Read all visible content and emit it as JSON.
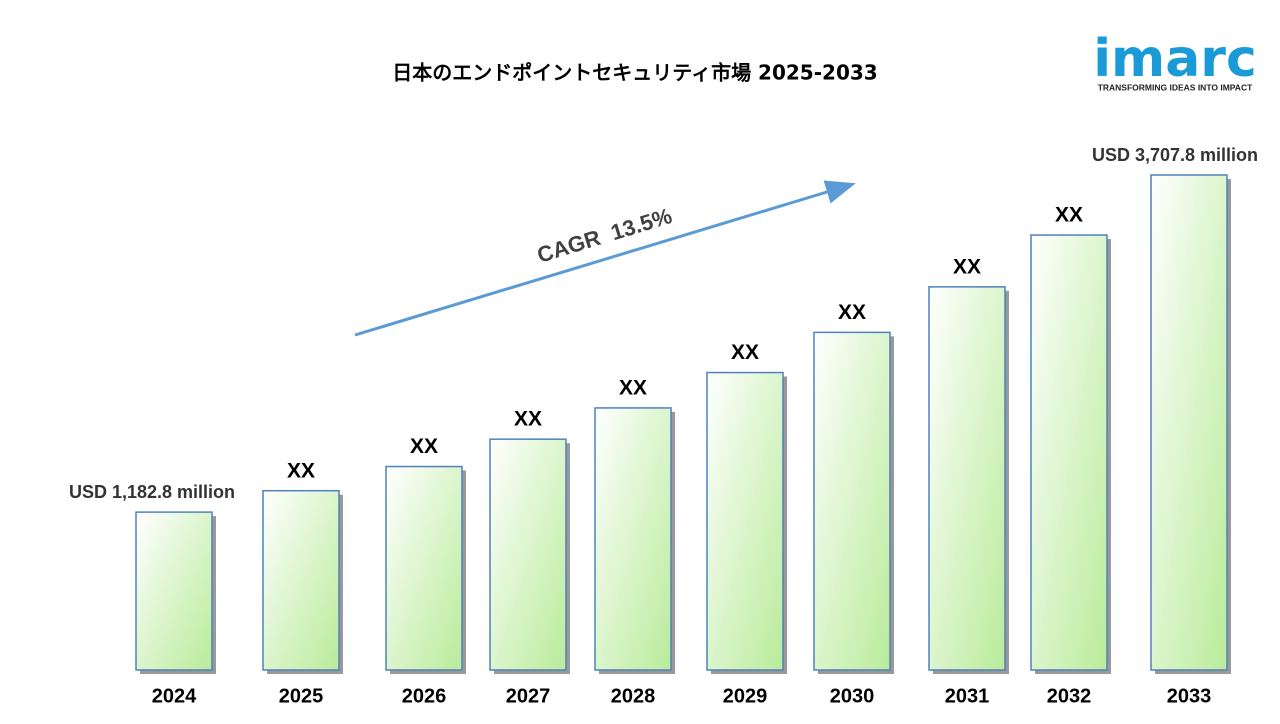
{
  "logo": {
    "name": "imarc",
    "tagline": "TRANSFORMING IDEAS INTO IMPACT"
  },
  "chart_data": {
    "type": "bar",
    "title": "日本のエンドポイントセキュリティ市場 2025-2033",
    "annotation": "CAGR  13.5%",
    "categories": [
      "2024",
      "2025",
      "2026",
      "2027",
      "2028",
      "2029",
      "2030",
      "2031",
      "2032",
      "2033"
    ],
    "values": [
      1182.8,
      1343,
      1524,
      1729,
      1963,
      2228,
      2529,
      2870,
      3258,
      3707.8
    ],
    "value_labels": [
      "USD 1,182.8 million",
      "XX",
      "XX",
      "XX",
      "XX",
      "XX",
      "XX",
      "XX",
      "XX",
      "USD 3,707.8 million"
    ],
    "color": "#b9eb9a",
    "edge_color": "#4f81bd"
  }
}
